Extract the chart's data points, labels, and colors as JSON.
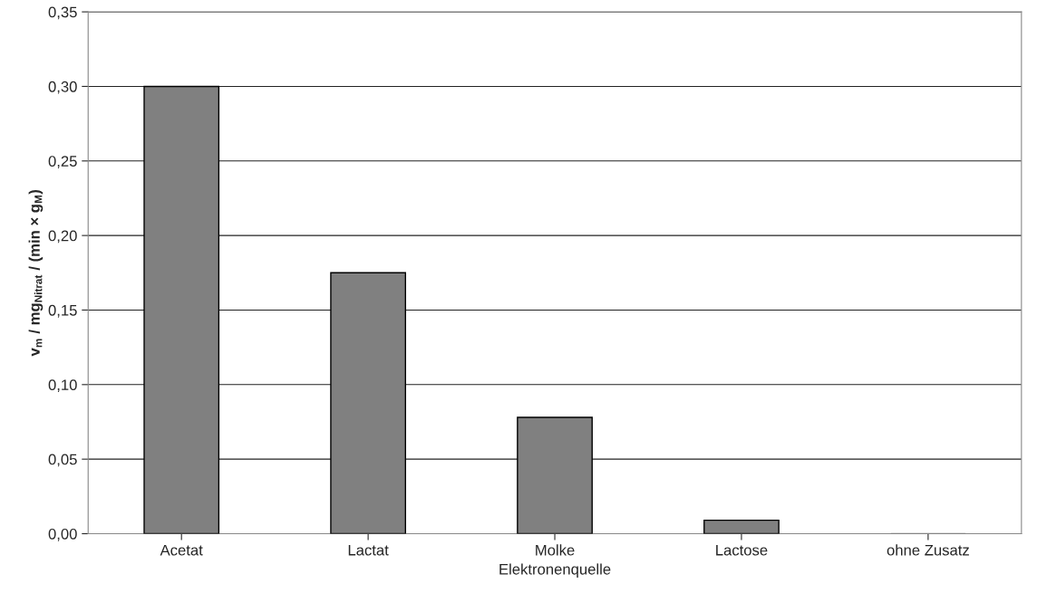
{
  "chart_data": {
    "type": "bar",
    "xlabel": "Elektronenquelle",
    "ylabel": "v$_{m}$ / mg$_{Nitrat}$ / (min × g$_{M}$)",
    "categories": [
      "Acetat",
      "Lactat",
      "Molke",
      "Lactose",
      "ohne Zusatz"
    ],
    "values": [
      0.3,
      0.175,
      0.078,
      0.009,
      0.0
    ],
    "color": "#808080",
    "ylim": [
      0,
      0.35
    ],
    "yticks": [
      {
        "value": 0,
        "label": "0,00"
      },
      {
        "value": 0.05,
        "label": "0,05"
      },
      {
        "value": 0.1,
        "label": "0,10"
      },
      {
        "value": 0.15,
        "label": "0,15"
      },
      {
        "value": 0.2,
        "label": "0,20"
      },
      {
        "value": 0.25,
        "label": "0,25"
      },
      {
        "value": 0.3,
        "label": "0,30"
      },
      {
        "value": 0.35,
        "label": "0,35"
      }
    ],
    "grid": "y",
    "legend": false
  }
}
